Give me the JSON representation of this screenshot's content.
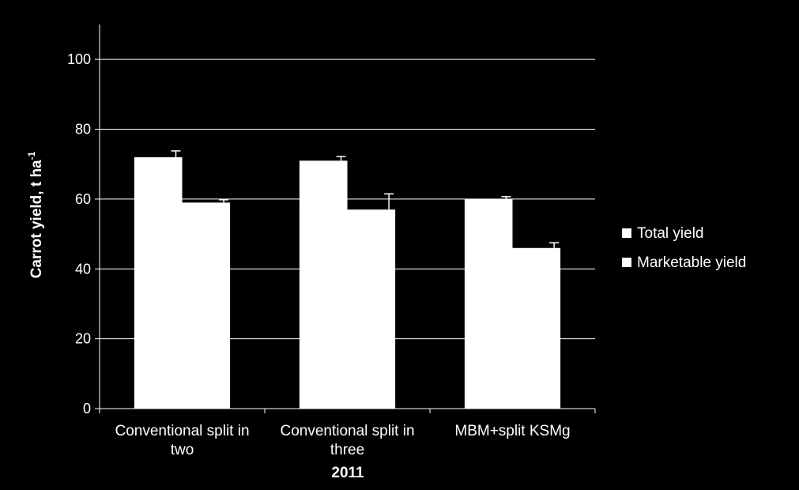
{
  "chart_data": {
    "type": "bar",
    "categories": [
      [
        "Conventional split in",
        "two"
      ],
      [
        "Conventional split in",
        "three"
      ],
      [
        "MBM+split KSMg"
      ]
    ],
    "series": [
      {
        "name": "Total yield",
        "values": [
          72,
          71,
          60
        ],
        "errors": [
          1.8,
          1.2,
          0.7
        ]
      },
      {
        "name": "Marketable yield",
        "values": [
          59,
          57,
          46
        ],
        "errors": [
          0.8,
          4.5,
          1.5
        ]
      }
    ],
    "xlabel": "2011",
    "ylabel_main": "Carrot yield, t ha",
    "ylabel_sup": "-1",
    "ylim": [
      0,
      110
    ],
    "yticks": [
      0,
      20,
      40,
      60,
      80,
      100
    ],
    "grid": true,
    "legend_position": "right",
    "colors": {
      "background": "#000000",
      "bars": "#ffffff",
      "grid": "#ffffff",
      "text": "#ffffff"
    }
  }
}
